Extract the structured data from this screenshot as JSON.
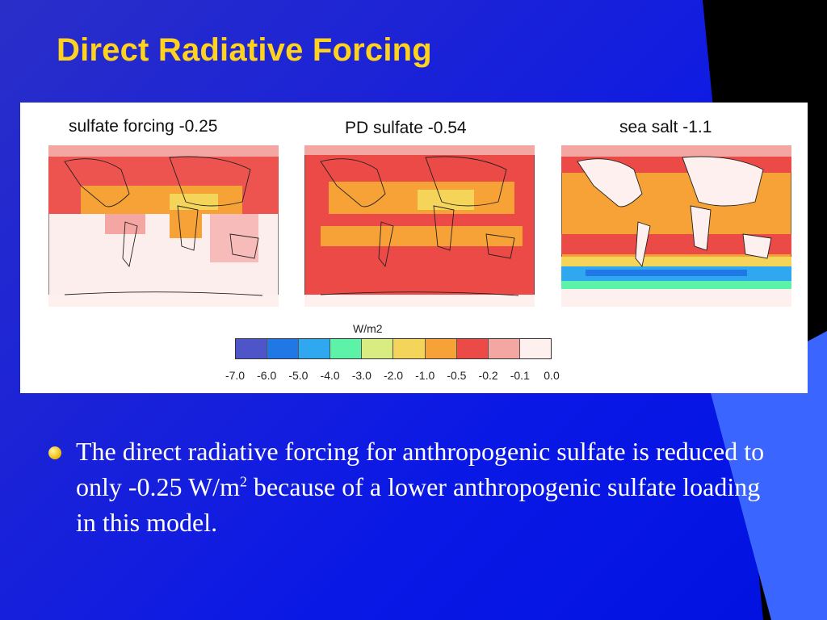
{
  "slide": {
    "title": "Direct Radiative Forcing"
  },
  "figure": {
    "maps": [
      {
        "title": "sulfate forcing -0.25"
      },
      {
        "title": "PD sulfate -0.54"
      },
      {
        "title": "sea salt -1.1"
      }
    ],
    "colorbar": {
      "unit": "W/m2",
      "colors": [
        "#4d55c8",
        "#1f78e6",
        "#2fa8f0",
        "#5cf2a8",
        "#d8ec82",
        "#f5d45a",
        "#f7a236",
        "#ec4a46",
        "#f4a6a2",
        "#fdf0ee"
      ],
      "labels": [
        "-7.0",
        "-6.0",
        "-5.0",
        "-4.0",
        "-3.0",
        "-2.0",
        "-1.0",
        "-0.5",
        "-0.2",
        "-0.1",
        "0.0"
      ]
    }
  },
  "bullet": {
    "text_before": "The direct radiative forcing for anthropogenic sulfate is reduced to only -0.25 W/m",
    "superscript": "2",
    "text_after": " because of a lower anthropogenic sulfate loading in this model."
  },
  "theme": {
    "title_color": "#ffd21e",
    "background": "#1a22d8"
  }
}
